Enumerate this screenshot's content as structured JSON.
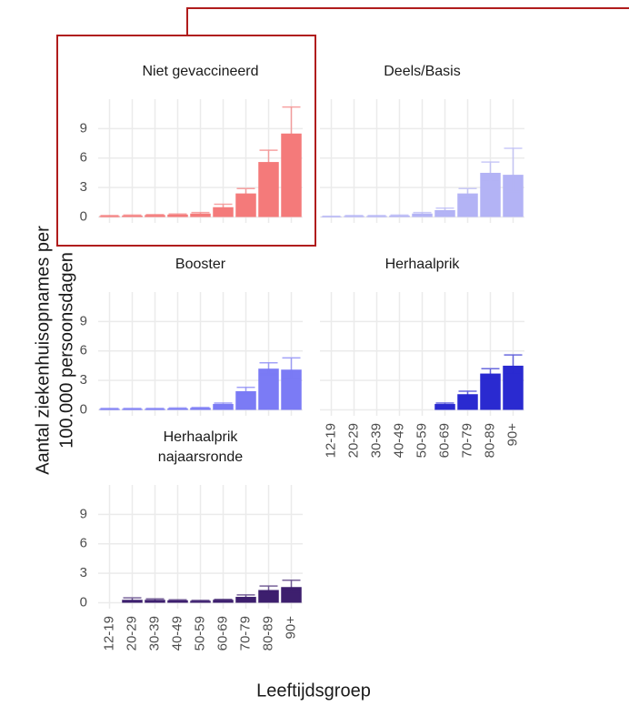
{
  "axis_titles": {
    "y": [
      "Aantal ziekenhuisopnames per",
      "100.000 persoonsdagen"
    ],
    "x": "Leeftijdsgroep"
  },
  "chart_data": [
    {
      "type": "bar",
      "title": [
        "Niet gevaccineerd"
      ],
      "color": "#f47a7a",
      "categories": [
        "12-19",
        "20-29",
        "30-39",
        "40-49",
        "50-59",
        "60-69",
        "70-79",
        "80-89",
        "90+"
      ],
      "values": [
        0.1,
        0.15,
        0.2,
        0.25,
        0.35,
        1.0,
        2.4,
        5.6,
        8.5
      ],
      "error_low": [
        0.05,
        0.1,
        0.15,
        0.2,
        0.25,
        0.7,
        1.9,
        4.8,
        5.9
      ],
      "error_high": [
        0.15,
        0.2,
        0.25,
        0.3,
        0.45,
        1.3,
        2.9,
        6.8,
        11.2
      ],
      "ylim": [
        -0.6,
        12
      ],
      "yticks": [
        0,
        3,
        6,
        9
      ],
      "grid": true
    },
    {
      "type": "bar",
      "title": [
        "Deels/Basis"
      ],
      "color": "#b3b3f5",
      "categories": [
        "12-19",
        "20-29",
        "30-39",
        "40-49",
        "50-59",
        "60-69",
        "70-79",
        "80-89",
        "90+"
      ],
      "values": [
        0.05,
        0.1,
        0.1,
        0.15,
        0.35,
        0.7,
        2.4,
        4.5,
        4.3
      ],
      "error_low": [
        0.02,
        0.05,
        0.05,
        0.1,
        0.25,
        0.5,
        2.0,
        3.6,
        2.6
      ],
      "error_high": [
        0.08,
        0.15,
        0.15,
        0.2,
        0.45,
        0.9,
        2.9,
        5.6,
        7.0
      ],
      "ylim": [
        -0.6,
        12
      ],
      "yticks": [
        0,
        3,
        6,
        9
      ],
      "grid": true
    },
    {
      "type": "bar",
      "title": [
        "Booster"
      ],
      "color": "#7b7bf5",
      "categories": [
        "12-19",
        "20-29",
        "30-39",
        "40-49",
        "50-59",
        "60-69",
        "70-79",
        "80-89",
        "90+"
      ],
      "values": [
        0.1,
        0.1,
        0.1,
        0.15,
        0.2,
        0.6,
        1.9,
        4.2,
        4.1
      ],
      "error_low": [
        0.05,
        0.05,
        0.05,
        0.1,
        0.15,
        0.5,
        1.6,
        3.6,
        3.2
      ],
      "error_high": [
        0.15,
        0.15,
        0.15,
        0.2,
        0.25,
        0.7,
        2.3,
        4.8,
        5.3
      ],
      "ylim": [
        -0.6,
        12
      ],
      "yticks": [
        0,
        3,
        6,
        9
      ],
      "grid": true
    },
    {
      "type": "bar",
      "title": [
        "Herhaalprik"
      ],
      "color": "#2a2ad0",
      "categories": [
        "12-19",
        "20-29",
        "30-39",
        "40-49",
        "50-59",
        "60-69",
        "70-79",
        "80-89",
        "90+"
      ],
      "values": [
        null,
        null,
        null,
        null,
        null,
        0.6,
        1.6,
        3.7,
        4.5
      ],
      "error_low": [
        null,
        null,
        null,
        null,
        null,
        0.5,
        1.4,
        3.2,
        3.7
      ],
      "error_high": [
        null,
        null,
        null,
        null,
        null,
        0.7,
        1.9,
        4.2,
        5.6
      ],
      "ylim": [
        -0.6,
        12
      ],
      "yticks": [
        0,
        3,
        6,
        9
      ],
      "grid": true
    },
    {
      "type": "bar",
      "title": [
        "Herhaalprik",
        "najaarsronde"
      ],
      "color": "#3d1f6e",
      "categories": [
        "12-19",
        "20-29",
        "30-39",
        "40-49",
        "50-59",
        "60-69",
        "70-79",
        "80-89",
        "90+"
      ],
      "values": [
        null,
        0.3,
        0.3,
        0.25,
        0.2,
        0.3,
        0.6,
        1.3,
        1.6
      ],
      "error_low": [
        null,
        0.1,
        0.2,
        0.2,
        0.15,
        0.25,
        0.5,
        1.1,
        1.1
      ],
      "error_high": [
        null,
        0.5,
        0.4,
        0.3,
        0.25,
        0.35,
        0.8,
        1.7,
        2.3
      ],
      "ylim": [
        -0.6,
        12
      ],
      "yticks": [
        0,
        3,
        6,
        9
      ],
      "grid": true
    }
  ]
}
